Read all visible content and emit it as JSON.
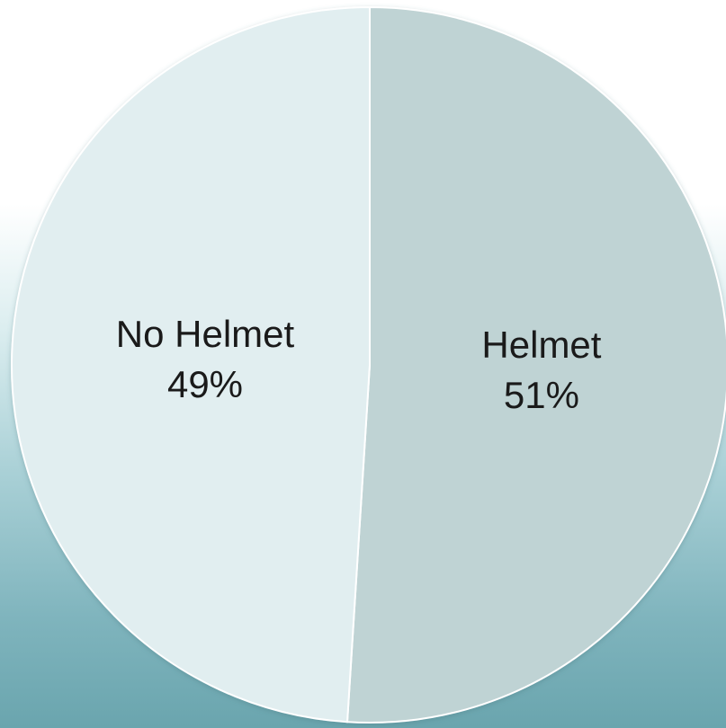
{
  "chart_data": {
    "type": "pie",
    "slices": [
      {
        "label": "Helmet",
        "value": 51,
        "value_label": "51%",
        "color": "#bfd3d4"
      },
      {
        "label": "No Helmet",
        "value": 49,
        "value_label": "49%",
        "color": "#e1eef0"
      }
    ],
    "start": "12 o'clock",
    "direction": "clockwise",
    "edge_color": "#ffffff"
  }
}
